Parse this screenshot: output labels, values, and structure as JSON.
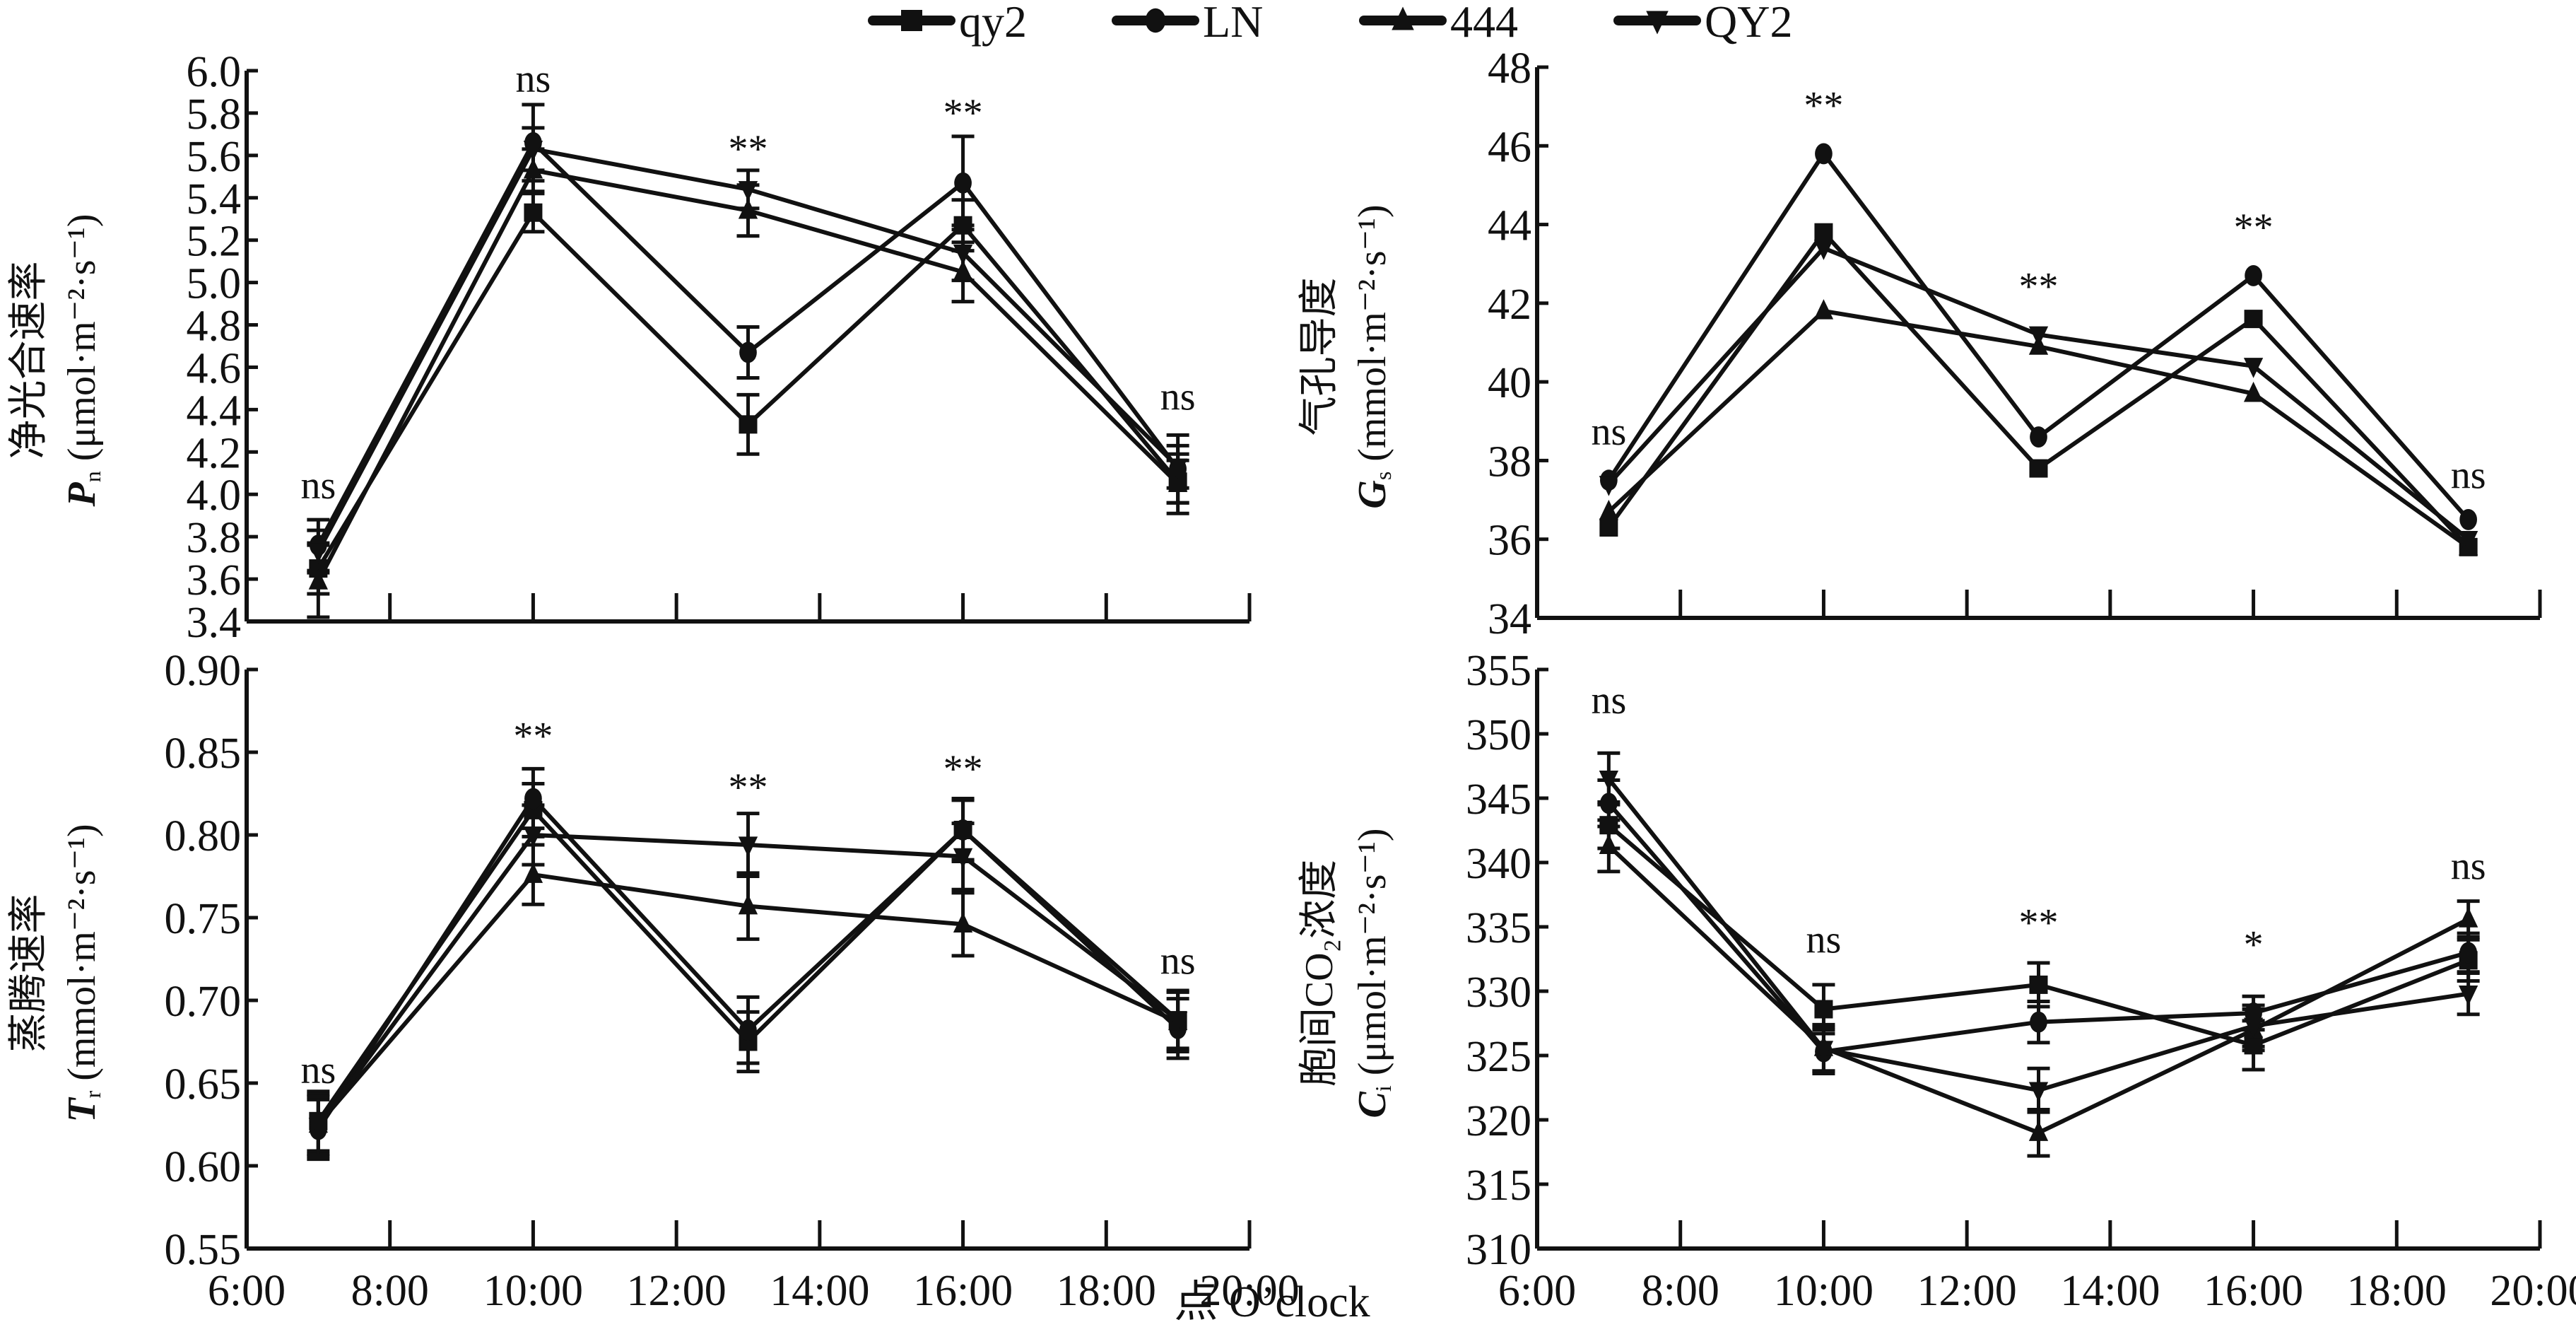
{
  "legend": {
    "items": [
      {
        "label": "qy2",
        "marker": "square"
      },
      {
        "label": "LN",
        "marker": "circle"
      },
      {
        "label": "444",
        "marker": "triangle-up"
      },
      {
        "label": "QY2",
        "marker": "triangle-down"
      }
    ]
  },
  "xtitle": "点 O’clock",
  "chart_data": [
    {
      "type": "line",
      "panel": "top-left",
      "ylabel_cn": "净光合速率",
      "ylabel": "Pn (μmol·m⁻²·s⁻¹)",
      "ylabel_sym": "P",
      "ylabel_sub": "n",
      "ylabel_unit": "(μmol·m⁻²·s⁻¹)",
      "xlim": [
        6,
        20
      ],
      "ylim": [
        3.4,
        6.0
      ],
      "yticks": [
        3.4,
        3.6,
        3.8,
        4.0,
        4.2,
        4.4,
        4.6,
        4.8,
        5.0,
        5.2,
        5.4,
        5.6,
        5.8,
        6.0
      ],
      "ytick_labels": [
        "3.4",
        "3.6",
        "3.8",
        "4.0",
        "4.2",
        "4.4",
        "4.6",
        "4.8",
        "5.0",
        "5.2",
        "5.4",
        "5.6",
        "5.8",
        "6.0"
      ],
      "xticks": [
        6,
        8,
        10,
        12,
        14,
        16,
        18,
        20
      ],
      "xtick_labels": [],
      "x": [
        7,
        10,
        13,
        16,
        19
      ],
      "series": [
        {
          "name": "qy2",
          "values": [
            3.65,
            5.33,
            4.33,
            5.27,
            4.06
          ],
          "err": [
            0.12,
            0.09,
            0.14,
            0.12,
            0.1
          ]
        },
        {
          "name": "LN",
          "values": [
            3.76,
            5.66,
            4.67,
            5.47,
            4.12
          ],
          "err": [
            0.12,
            0.18,
            0.12,
            0.22,
            0.16
          ]
        },
        {
          "name": "444",
          "values": [
            3.59,
            5.53,
            5.34,
            5.05,
            4.05
          ],
          "err": [
            0.17,
            0.1,
            0.12,
            0.14,
            0.14
          ]
        },
        {
          "name": "QY2",
          "values": [
            3.73,
            5.63,
            5.44,
            5.14,
            4.13
          ],
          "err": [
            0.1,
            0.1,
            0.09,
            0.13,
            0.1
          ]
        }
      ],
      "annotations": [
        {
          "x": 7,
          "text": "ns",
          "y": 3.98
        },
        {
          "x": 10,
          "text": "ns",
          "y": 5.9
        },
        {
          "x": 13,
          "text": "**",
          "y": 5.57
        },
        {
          "x": 16,
          "text": "**",
          "y": 5.74
        },
        {
          "x": 19,
          "text": "ns",
          "y": 4.4
        }
      ]
    },
    {
      "type": "line",
      "panel": "top-right",
      "ylabel_cn": "气孔导度",
      "ylabel": "Gs (mmol·m⁻²·s⁻¹)",
      "ylabel_sym": "G",
      "ylabel_sub": "s",
      "ylabel_unit": "(mmol·m⁻²·s⁻¹)",
      "xlim": [
        6,
        20
      ],
      "ylim": [
        34,
        48
      ],
      "yticks": [
        34,
        36,
        38,
        40,
        42,
        44,
        46,
        48
      ],
      "ytick_labels": [
        "34",
        "36",
        "38",
        "40",
        "42",
        "44",
        "46",
        "48"
      ],
      "xticks": [
        6,
        8,
        10,
        12,
        14,
        16,
        18,
        20
      ],
      "xtick_labels": [],
      "x": [
        7,
        10,
        13,
        16,
        19
      ],
      "series": [
        {
          "name": "qy2",
          "values": [
            36.3,
            43.8,
            37.8,
            41.6,
            35.8
          ],
          "err": [
            0,
            0,
            0,
            0,
            0
          ]
        },
        {
          "name": "LN",
          "values": [
            37.5,
            45.8,
            38.6,
            42.7,
            36.5
          ],
          "err": [
            0,
            0,
            0,
            0,
            0
          ]
        },
        {
          "name": "444",
          "values": [
            36.7,
            41.8,
            40.9,
            39.7,
            35.8
          ],
          "err": [
            0,
            0,
            0,
            0,
            0
          ]
        },
        {
          "name": "QY2",
          "values": [
            37.4,
            43.4,
            41.2,
            40.4,
            36.0
          ],
          "err": [
            0,
            0,
            0,
            0,
            0
          ]
        }
      ],
      "annotations": [
        {
          "x": 7,
          "text": "ns",
          "y": 38.4
        },
        {
          "x": 10,
          "text": "**",
          "y": 46.7
        },
        {
          "x": 13,
          "text": "**",
          "y": 42.1
        },
        {
          "x": 16,
          "text": "**",
          "y": 43.6
        },
        {
          "x": 19,
          "text": "ns",
          "y": 37.3
        }
      ]
    },
    {
      "type": "line",
      "panel": "bottom-left",
      "ylabel_cn": "蒸腾速率",
      "ylabel": "Tr (mmol·m⁻²·s⁻¹)",
      "ylabel_sym": "T",
      "ylabel_sub": "r",
      "ylabel_unit": "(mmol·m⁻²·s⁻¹)",
      "xlim": [
        6,
        20
      ],
      "ylim": [
        0.55,
        0.9
      ],
      "yticks": [
        0.55,
        0.6,
        0.65,
        0.7,
        0.75,
        0.8,
        0.85,
        0.9
      ],
      "ytick_labels": [
        "0.55",
        "0.60",
        "0.65",
        "0.70",
        "0.75",
        "0.80",
        "0.85",
        "0.90"
      ],
      "xticks": [
        6,
        8,
        10,
        12,
        14,
        16,
        18,
        20
      ],
      "xtick_labels": [
        "6:00",
        "8:00",
        "10:00",
        "12:00",
        "14:00",
        "16:00",
        "18:00",
        "20:00"
      ],
      "x": [
        7,
        10,
        13,
        16,
        19
      ],
      "series": [
        {
          "name": "qy2",
          "values": [
            0.627,
            0.815,
            0.675,
            0.803,
            0.688
          ],
          "err": [
            0.018,
            0.016,
            0.018,
            0.019,
            0.018
          ]
        },
        {
          "name": "LN",
          "values": [
            0.622,
            0.822,
            0.682,
            0.803,
            0.683
          ],
          "err": [
            0.018,
            0.018,
            0.02,
            0.018,
            0.018
          ]
        },
        {
          "name": "444",
          "values": [
            0.625,
            0.776,
            0.757,
            0.746,
            0.687
          ],
          "err": [
            0.018,
            0.018,
            0.02,
            0.019,
            0.018
          ]
        },
        {
          "name": "QY2",
          "values": [
            0.624,
            0.8,
            0.794,
            0.787,
            0.688
          ],
          "err": [
            0.018,
            0.018,
            0.019,
            0.02,
            0.017
          ]
        }
      ],
      "annotations": [
        {
          "x": 7,
          "text": "ns",
          "y": 0.65
        },
        {
          "x": 10,
          "text": "**",
          "y": 0.852
        },
        {
          "x": 13,
          "text": "**",
          "y": 0.821
        },
        {
          "x": 16,
          "text": "**",
          "y": 0.832
        },
        {
          "x": 19,
          "text": "ns",
          "y": 0.716
        }
      ]
    },
    {
      "type": "line",
      "panel": "bottom-right",
      "ylabel_cn": "胞间CO₂浓度",
      "ylabel": "Ci (μmol·m⁻²·s⁻¹)",
      "ylabel_sym": "C",
      "ylabel_sub": "i",
      "ylabel_unit": "(μmol·m⁻²·s⁻¹)",
      "xlim": [
        6,
        20
      ],
      "ylim": [
        310,
        355
      ],
      "yticks": [
        310,
        315,
        320,
        325,
        330,
        335,
        340,
        345,
        350,
        355
      ],
      "ytick_labels": [
        "310",
        "315",
        "320",
        "325",
        "330",
        "335",
        "340",
        "345",
        "350",
        "355"
      ],
      "xticks": [
        6,
        8,
        10,
        12,
        14,
        16,
        18,
        20
      ],
      "xtick_labels": [
        "6:00",
        "8:00",
        "10:00",
        "12:00",
        "14:00",
        "16:00",
        "18:00",
        "20:00"
      ],
      "x": [
        7,
        10,
        13,
        16,
        19
      ],
      "series": [
        {
          "name": "qy2",
          "values": [
            342.9,
            328.6,
            330.5,
            325.8,
            332.4
          ],
          "err": [
            1.8,
            1.9,
            1.7,
            1.9,
            1.6
          ]
        },
        {
          "name": "LN",
          "values": [
            344.6,
            325.3,
            327.6,
            328.3,
            333.0
          ],
          "err": [
            1.8,
            1.7,
            1.6,
            1.3,
            1.5
          ]
        },
        {
          "name": "444",
          "values": [
            341.3,
            325.6,
            319.0,
            327.0,
            335.6
          ],
          "err": [
            2.0,
            1.8,
            1.8,
            1.6,
            1.4
          ]
        },
        {
          "name": "QY2",
          "values": [
            346.5,
            325.5,
            322.3,
            327.3,
            329.8
          ],
          "err": [
            2.0,
            1.7,
            1.7,
            1.6,
            1.6
          ]
        }
      ],
      "annotations": [
        {
          "x": 7,
          "text": "ns",
          "y": 351.6
        },
        {
          "x": 10,
          "text": "ns",
          "y": 333.0
        },
        {
          "x": 13,
          "text": "**",
          "y": 334.3
        },
        {
          "x": 16,
          "text": "*",
          "y": 332.6
        },
        {
          "x": 19,
          "text": "ns",
          "y": 338.7
        }
      ]
    }
  ]
}
